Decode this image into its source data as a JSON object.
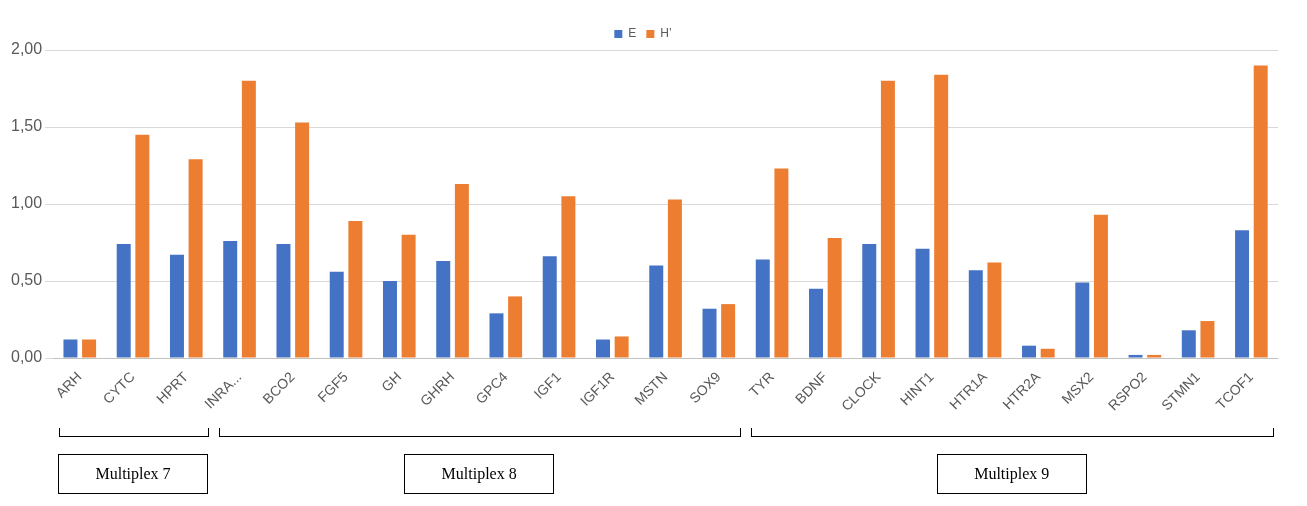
{
  "chart_data": {
    "type": "bar",
    "categories": [
      "ARH",
      "CYTC",
      "HPRT",
      "INRA...",
      "BCO2",
      "FGF5",
      "GH",
      "GHRH",
      "GPC4",
      "IGF1",
      "IGF1R",
      "MSTN",
      "SOX9",
      "TYR",
      "BDNF",
      "CLOCK",
      "HINT1",
      "HTR1A",
      "HTR2A",
      "MSX2",
      "RSPO2",
      "STMN1",
      "TCOF1"
    ],
    "series": [
      {
        "name": "E",
        "color": "#4472c4",
        "values": [
          0.12,
          0.74,
          0.67,
          0.76,
          0.74,
          0.56,
          0.5,
          0.63,
          0.29,
          0.66,
          0.12,
          0.6,
          0.32,
          0.64,
          0.45,
          0.74,
          0.71,
          0.57,
          0.08,
          0.49,
          0.02,
          0.18,
          0.83
        ]
      },
      {
        "name": "H’",
        "color": "#ed7d31",
        "values": [
          0.12,
          1.45,
          1.29,
          1.8,
          1.53,
          0.89,
          0.8,
          1.13,
          0.4,
          1.05,
          0.14,
          1.03,
          0.35,
          1.23,
          0.78,
          1.8,
          1.84,
          0.62,
          0.06,
          0.93,
          0.02,
          0.24,
          1.9
        ]
      }
    ],
    "ylim": [
      0,
      2
    ],
    "yticks": [
      {
        "value": 0,
        "label": "0,00"
      },
      {
        "value": 0.5,
        "label": "0,50"
      },
      {
        "value": 1,
        "label": "1,00"
      },
      {
        "value": 1.5,
        "label": "1,50"
      },
      {
        "value": 2,
        "label": "2,00"
      }
    ],
    "grid": "y",
    "legend": "top",
    "annotations": [
      "Multiplex 7",
      "Multiplex 8",
      "Multiplex 9"
    ]
  }
}
